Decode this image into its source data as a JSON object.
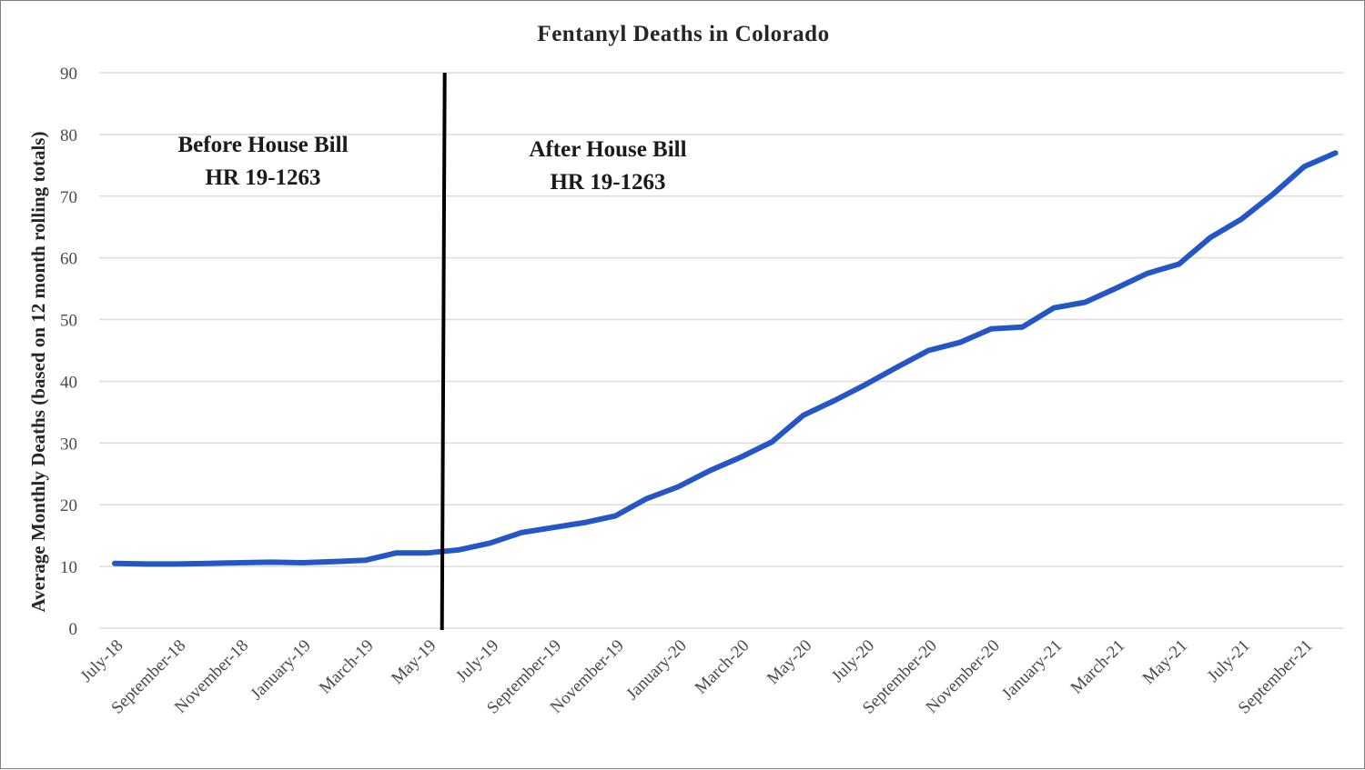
{
  "chart_data": {
    "type": "line",
    "title": "Fentanyl Deaths in Colorado",
    "xlabel": "",
    "ylabel": "Average Monthly Deaths (based on 12 month rolling totals)",
    "ylim": [
      0,
      90
    ],
    "yticks": [
      0,
      10,
      20,
      30,
      40,
      50,
      60,
      70,
      80,
      90
    ],
    "grid": true,
    "legend": "none",
    "series_color": "#2457c5",
    "x_tick_labels": [
      "July-18",
      "September-18",
      "November-18",
      "January-19",
      "March-19",
      "May-19",
      "July-19",
      "September-19",
      "November-19",
      "January-20",
      "March-20",
      "May-20",
      "July-20",
      "September-20",
      "November-20",
      "January-21",
      "March-21",
      "May-21",
      "July-21",
      "September-21"
    ],
    "x": [
      "Jul-18",
      "Aug-18",
      "Sep-18",
      "Oct-18",
      "Nov-18",
      "Dec-18",
      "Jan-19",
      "Feb-19",
      "Mar-19",
      "Apr-19",
      "May-19",
      "Jun-19",
      "Jul-19",
      "Aug-19",
      "Sep-19",
      "Oct-19",
      "Nov-19",
      "Dec-19",
      "Jan-20",
      "Feb-20",
      "Mar-20",
      "Apr-20",
      "May-20",
      "Jun-20",
      "Jul-20",
      "Aug-20",
      "Sep-20",
      "Oct-20",
      "Nov-20",
      "Dec-20",
      "Jan-21",
      "Feb-21",
      "Mar-21",
      "Apr-21",
      "May-21",
      "Jun-21",
      "Jul-21",
      "Aug-21",
      "Sep-21",
      "Oct-21"
    ],
    "values": [
      10.5,
      10.4,
      10.4,
      10.5,
      10.6,
      10.7,
      10.6,
      10.8,
      11.0,
      12.2,
      12.2,
      12.7,
      13.8,
      15.5,
      16.3,
      17.1,
      18.2,
      21.0,
      22.9,
      25.5,
      27.7,
      30.2,
      34.5,
      36.9,
      39.5,
      42.3,
      45.0,
      46.3,
      48.5,
      48.8,
      51.9,
      52.8,
      55.1,
      57.5,
      59.0,
      63.3,
      66.3,
      70.3,
      74.8,
      77.0
    ],
    "annotations": [
      {
        "id": "before",
        "lines": [
          "Before House Bill",
          "HR 19-1263"
        ]
      },
      {
        "id": "after",
        "lines": [
          "After House Bill",
          "HR 19-1263"
        ]
      }
    ],
    "divider_between": [
      "May-19",
      "Jun-19"
    ]
  }
}
